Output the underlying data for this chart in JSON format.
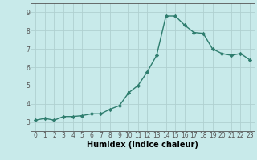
{
  "x": [
    0,
    1,
    2,
    3,
    4,
    5,
    6,
    7,
    8,
    9,
    10,
    11,
    12,
    13,
    14,
    15,
    16,
    17,
    18,
    19,
    20,
    21,
    22,
    23
  ],
  "y": [
    3.1,
    3.2,
    3.1,
    3.3,
    3.3,
    3.35,
    3.45,
    3.45,
    3.7,
    3.9,
    4.6,
    5.0,
    5.75,
    6.65,
    8.8,
    8.8,
    8.3,
    7.9,
    7.85,
    7.0,
    6.75,
    6.65,
    6.75,
    6.4
  ],
  "xlabel": "Humidex (Indice chaleur)",
  "ylim": [
    2.5,
    9.5
  ],
  "xlim": [
    -0.5,
    23.5
  ],
  "yticks": [
    3,
    4,
    5,
    6,
    7,
    8,
    9
  ],
  "xticks": [
    0,
    1,
    2,
    3,
    4,
    5,
    6,
    7,
    8,
    9,
    10,
    11,
    12,
    13,
    14,
    15,
    16,
    17,
    18,
    19,
    20,
    21,
    22,
    23
  ],
  "line_color": "#2e7d6e",
  "bg_color": "#c8eaea",
  "grid_color": "#b0d0d0",
  "axis_color": "#555555",
  "marker": "D",
  "marker_size": 2.2,
  "linewidth": 1.0,
  "tick_fontsize": 5.5,
  "xlabel_fontsize": 7.0,
  "xlabel_bold": true
}
